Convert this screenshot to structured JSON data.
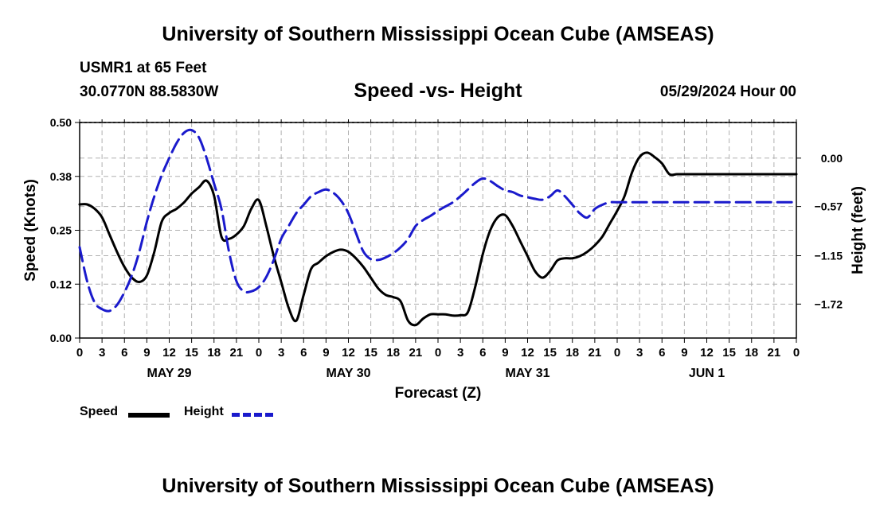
{
  "title": "University of Southern Mississippi Ocean Cube (AMSEAS)",
  "footer_title": "University of Southern Mississippi Ocean Cube (AMSEAS)",
  "station": "USMR1 at 65 Feet",
  "coordinates": "30.0770N  88.5830W",
  "subtitle": "Speed -vs- Height",
  "datetime": "05/29/2024 Hour 00",
  "legend": {
    "speed": "Speed",
    "height": "Height"
  },
  "colors": {
    "speed": "#000000",
    "height": "#1a1acc",
    "grid": "#b0b0b0"
  },
  "chart_data": {
    "type": "line",
    "title": "Speed -vs- Height",
    "xlabel": "Forecast (Z)",
    "ylabel": "Speed (Knots)",
    "ylabel_right": "Height (feet)",
    "x_range_hours": [
      0,
      96
    ],
    "x_tick_labels": [
      "0",
      "3",
      "6",
      "9",
      "12",
      "15",
      "18",
      "21",
      "0",
      "3",
      "6",
      "9",
      "12",
      "15",
      "18",
      "21",
      "0",
      "3",
      "6",
      "9",
      "12",
      "15",
      "18",
      "21",
      "0",
      "3",
      "6",
      "9",
      "12",
      "15",
      "18",
      "21",
      "0"
    ],
    "date_labels": [
      {
        "label": "MAY 29",
        "hour": 12
      },
      {
        "label": "MAY 30",
        "hour": 36
      },
      {
        "label": "MAY 31",
        "hour": 60
      },
      {
        "label": "JUN 1",
        "hour": 84
      }
    ],
    "ylim_left": [
      0,
      0.5
    ],
    "yticks_left": [
      0.0,
      0.125,
      0.25,
      0.375,
      0.5
    ],
    "ytick_labels_left": [
      "0.00",
      "0.12",
      "0.25",
      "0.38",
      "0.50"
    ],
    "ylim_right": [
      -2.12,
      0.42
    ],
    "yticks_right": [
      -1.72,
      -1.15,
      -0.57,
      0.0
    ],
    "ytick_labels_right": [
      "−1.72",
      "−1.15",
      "−0.57",
      "0.00"
    ],
    "grid": true,
    "series": [
      {
        "name": "Speed",
        "axis": "left",
        "x": [
          0,
          1,
          2,
          3,
          4,
          5,
          6,
          7,
          8,
          9,
          10,
          11,
          12,
          13,
          14,
          15,
          16,
          17,
          18,
          19,
          20,
          21,
          22,
          23,
          24,
          25,
          26,
          27,
          28,
          29,
          30,
          31,
          32,
          33,
          34,
          35,
          36,
          37,
          38,
          39,
          40,
          41,
          42,
          43,
          44,
          45,
          46,
          47,
          48,
          49,
          50,
          51,
          52,
          53,
          54,
          55,
          56,
          57,
          58,
          59,
          60,
          61,
          62,
          63,
          64,
          65,
          66,
          67,
          68,
          69,
          70,
          71,
          72,
          73,
          74,
          75,
          76,
          77,
          78,
          79,
          80,
          81,
          82,
          83,
          84,
          85,
          86,
          87,
          88,
          89,
          90,
          91,
          92,
          93,
          94,
          95,
          96
        ],
        "values": [
          0.31,
          0.31,
          0.3,
          0.28,
          0.24,
          0.2,
          0.165,
          0.14,
          0.13,
          0.145,
          0.2,
          0.27,
          0.29,
          0.3,
          0.315,
          0.335,
          0.35,
          0.365,
          0.33,
          0.235,
          0.23,
          0.24,
          0.26,
          0.3,
          0.32,
          0.26,
          0.19,
          0.13,
          0.07,
          0.04,
          0.1,
          0.16,
          0.175,
          0.19,
          0.2,
          0.205,
          0.2,
          0.185,
          0.165,
          0.14,
          0.115,
          0.1,
          0.095,
          0.085,
          0.04,
          0.03,
          0.045,
          0.055,
          0.055,
          0.055,
          0.052,
          0.053,
          0.06,
          0.12,
          0.195,
          0.25,
          0.28,
          0.285,
          0.26,
          0.225,
          0.19,
          0.155,
          0.14,
          0.155,
          0.18,
          0.185,
          0.185,
          0.19,
          0.2,
          0.215,
          0.235,
          0.265,
          0.295,
          0.33,
          0.385,
          0.42,
          0.43,
          0.42,
          0.405,
          0.38,
          0.38,
          0.38,
          0.38,
          0.38,
          0.38,
          0.38,
          0.38,
          0.38,
          0.38,
          0.38,
          0.38,
          0.38,
          0.38,
          0.38,
          0.38,
          0.38,
          0.38
        ]
      },
      {
        "name": "Height",
        "axis": "right",
        "x": [
          0,
          1,
          2,
          3,
          4,
          5,
          6,
          7,
          8,
          9,
          10,
          11,
          12,
          13,
          14,
          15,
          16,
          17,
          18,
          19,
          20,
          21,
          22,
          23,
          24,
          25,
          26,
          27,
          28,
          29,
          30,
          31,
          32,
          33,
          34,
          35,
          36,
          37,
          38,
          39,
          40,
          41,
          42,
          43,
          44,
          45,
          46,
          47,
          48,
          49,
          50,
          51,
          52,
          53,
          54,
          55,
          56,
          57,
          58,
          59,
          60,
          61,
          62,
          63,
          64,
          65,
          66,
          67,
          68,
          69,
          70,
          71,
          72,
          73,
          74,
          75,
          76,
          77,
          78,
          79,
          80,
          81,
          82,
          83,
          84,
          85,
          86,
          87,
          88,
          89,
          90,
          91,
          92,
          93,
          94,
          95,
          96
        ],
        "values": [
          -1.05,
          -1.45,
          -1.7,
          -1.78,
          -1.8,
          -1.73,
          -1.58,
          -1.38,
          -1.1,
          -0.75,
          -0.45,
          -0.2,
          0.0,
          0.18,
          0.3,
          0.33,
          0.24,
          0.0,
          -0.3,
          -0.6,
          -1.1,
          -1.45,
          -1.57,
          -1.57,
          -1.52,
          -1.4,
          -1.2,
          -0.95,
          -0.8,
          -0.65,
          -0.55,
          -0.45,
          -0.4,
          -0.37,
          -0.41,
          -0.5,
          -0.65,
          -0.88,
          -1.1,
          -1.19,
          -1.2,
          -1.17,
          -1.12,
          -1.05,
          -0.95,
          -0.8,
          -0.73,
          -0.68,
          -0.62,
          -0.57,
          -0.52,
          -0.45,
          -0.37,
          -0.29,
          -0.24,
          -0.27,
          -0.33,
          -0.38,
          -0.4,
          -0.44,
          -0.46,
          -0.48,
          -0.49,
          -0.45,
          -0.38,
          -0.45,
          -0.55,
          -0.65,
          -0.7,
          -0.6,
          -0.55,
          -0.52,
          -0.52,
          -0.52,
          -0.52,
          -0.52,
          -0.52,
          -0.52,
          -0.52,
          -0.52,
          -0.52,
          -0.52,
          -0.52,
          -0.52,
          -0.52,
          -0.52,
          -0.52,
          -0.52,
          -0.52,
          -0.52,
          -0.52,
          -0.52,
          -0.52,
          -0.52,
          -0.52,
          -0.52,
          -0.52
        ]
      }
    ]
  }
}
